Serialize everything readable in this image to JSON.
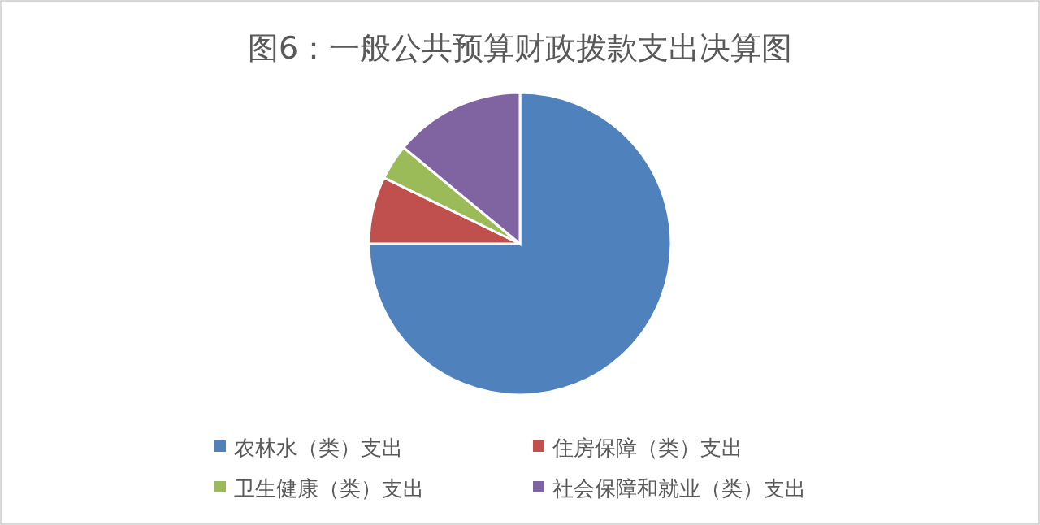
{
  "chart_data": {
    "type": "pie",
    "title": "图6：一般公共预算财政拨款支出决算图",
    "categories": [
      "农林水（类）支出",
      "住房保障（类）支出",
      "卫生健康（类）支出",
      "社会保障和就业（类）支出"
    ],
    "values": [
      75,
      7.2,
      3.8,
      14
    ],
    "colors": [
      "#4f81bd",
      "#c0504d",
      "#9bbb59",
      "#8064a2"
    ],
    "legend": "bottom"
  }
}
